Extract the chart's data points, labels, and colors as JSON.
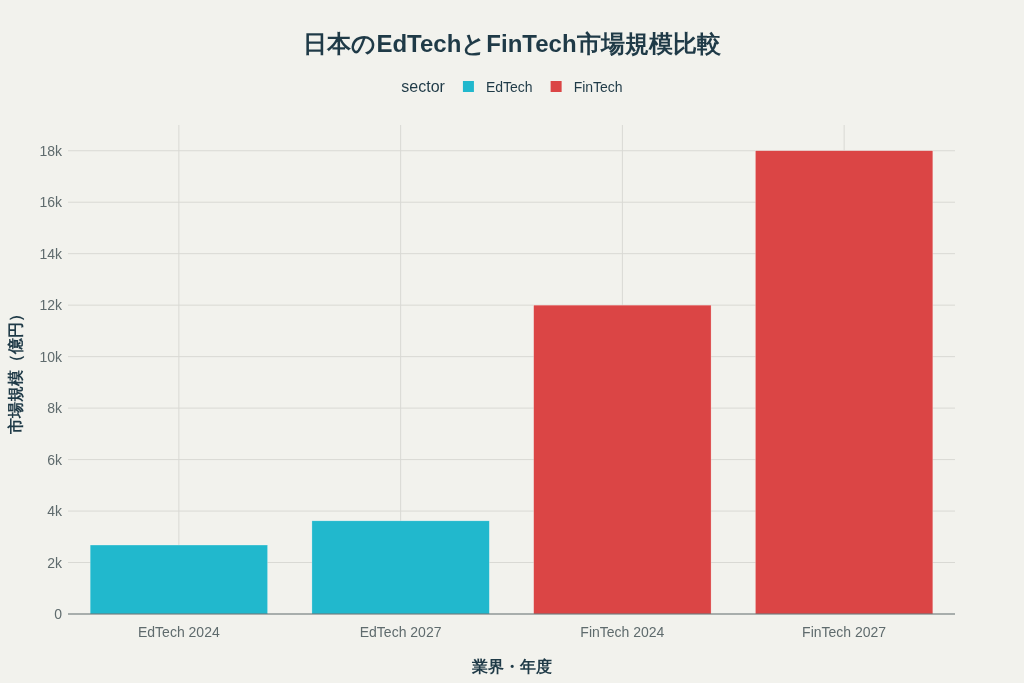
{
  "chart_data": {
    "type": "bar",
    "title": "日本のEdTechとFinTech市場規模比較",
    "xlabel": "業界・年度",
    "ylabel": "市場規模（億円）",
    "legend_title": "sector",
    "categories": [
      "EdTech 2024",
      "EdTech 2027",
      "FinTech 2024",
      "FinTech 2027"
    ],
    "series": [
      {
        "name": "EdTech",
        "color": "#21b8cd",
        "values": [
          2680,
          3620,
          null,
          null
        ]
      },
      {
        "name": "FinTech",
        "color": "#db4545",
        "values": [
          null,
          null,
          12000,
          18000
        ]
      }
    ],
    "ylim": [
      0,
      19000
    ],
    "yticks": [
      0,
      {
        "value": 2000,
        "label": "2k"
      },
      {
        "value": 4000,
        "label": "4k"
      },
      {
        "value": 6000,
        "label": "6k"
      },
      {
        "value": 8000,
        "label": "8k"
      },
      {
        "value": 10000,
        "label": "10k"
      },
      {
        "value": 12000,
        "label": "12k"
      },
      {
        "value": 14000,
        "label": "14k"
      },
      {
        "value": 16000,
        "label": "16k"
      },
      {
        "value": 18000,
        "label": "18k"
      }
    ],
    "grid": true,
    "legend": "top"
  }
}
